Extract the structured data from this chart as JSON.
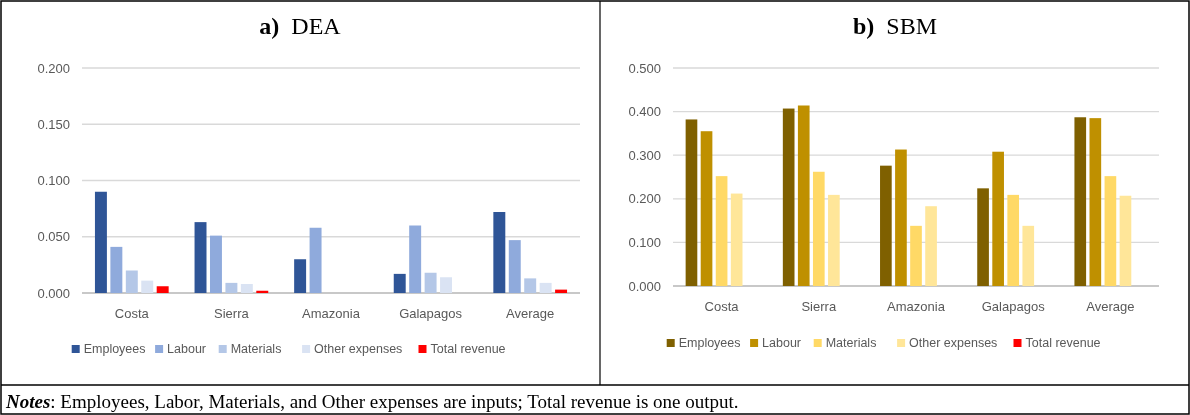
{
  "chart_data": [
    {
      "type": "bar",
      "title": "a)  DEA",
      "categories": [
        "Costa",
        "Sierra",
        "Amazonia",
        "Galapagos",
        "Average"
      ],
      "series": [
        {
          "name": "Employees",
          "color": "#2f5597",
          "values": [
            0.09,
            0.063,
            0.03,
            0.017,
            0.072
          ]
        },
        {
          "name": "Labour",
          "color": "#8faadc",
          "values": [
            0.041,
            0.051,
            0.058,
            0.06,
            0.047
          ]
        },
        {
          "name": "Materials",
          "color": "#b4c7e7",
          "values": [
            0.02,
            0.009,
            0,
            0.018,
            0.013
          ]
        },
        {
          "name": "Other expenses",
          "color": "#dae3f3",
          "values": [
            0.011,
            0.008,
            0,
            0.014,
            0.009
          ]
        },
        {
          "name": "Total revenue",
          "color": "#ff0000",
          "values": [
            0.006,
            0.002,
            0,
            0,
            0.003
          ]
        }
      ],
      "ylim": [
        0,
        0.2
      ],
      "yticks": [
        {
          "value": 0,
          "label": "0.000"
        },
        {
          "value": 0.05,
          "label": "0.050"
        },
        {
          "value": 0.1,
          "label": "0.100"
        },
        {
          "value": 0.15,
          "label": "0.150"
        },
        {
          "value": 0.2,
          "label": "0.200"
        }
      ],
      "grid": "y",
      "legend": "bottom",
      "annotations": [
        "Notes: Employees, Labor, Materials, and Other expenses are inputs; Total revenue is one output."
      ]
    },
    {
      "type": "bar",
      "title": "b)  SBM",
      "categories": [
        "Costa",
        "Sierra",
        "Amazonia",
        "Galapagos",
        "Average"
      ],
      "series": [
        {
          "name": "Employees",
          "color": "#7f6000",
          "values": [
            0.382,
            0.407,
            0.276,
            0.224,
            0.387
          ]
        },
        {
          "name": "Labour",
          "color": "#bf9000",
          "values": [
            0.355,
            0.414,
            0.313,
            0.308,
            0.385
          ]
        },
        {
          "name": "Materials",
          "color": "#ffd966",
          "values": [
            0.252,
            0.262,
            0.138,
            0.209,
            0.252
          ]
        },
        {
          "name": "Other expenses",
          "color": "#ffe699",
          "values": [
            0.212,
            0.209,
            0.183,
            0.138,
            0.207
          ]
        },
        {
          "name": "Total revenue",
          "color": "#ff0000",
          "values": [
            0,
            0,
            0,
            0,
            0
          ]
        }
      ],
      "ylim": [
        0,
        0.5
      ],
      "yticks": [
        {
          "value": 0,
          "label": "0.000"
        },
        {
          "value": 0.1,
          "label": "0.100"
        },
        {
          "value": 0.2,
          "label": "0.200"
        },
        {
          "value": 0.3,
          "label": "0.300"
        },
        {
          "value": 0.4,
          "label": "0.400"
        },
        {
          "value": 0.5,
          "label": "0.500"
        }
      ],
      "grid": "y",
      "legend": "bottom"
    }
  ]
}
